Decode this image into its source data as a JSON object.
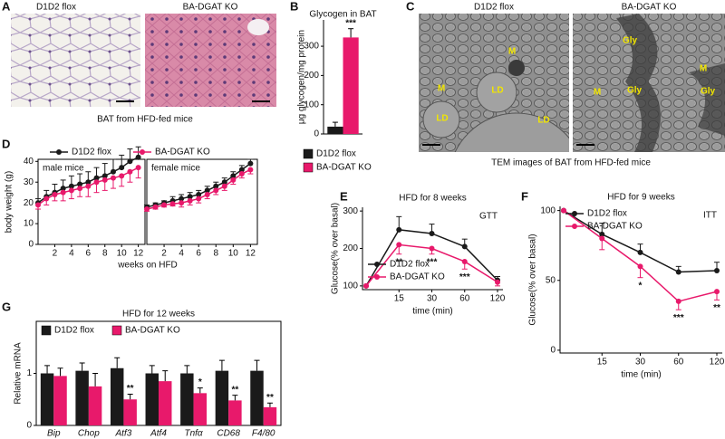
{
  "panel_labels": [
    "A",
    "B",
    "C",
    "D",
    "E",
    "F",
    "G"
  ],
  "histology": {
    "image_labels": [
      "D1D2 flox",
      "BA-DGAT KO"
    ],
    "caption": "BAT from HFD-fed mice"
  },
  "tem": {
    "image_labels": [
      "D1D2 flox",
      "BA-DGAT KO"
    ],
    "annotations": [
      "M",
      "M",
      "LD",
      "LD",
      "LD",
      "Gly",
      "M",
      "M",
      "Gly",
      "Gly"
    ],
    "caption": "TEM images of BAT from HFD-fed mice"
  },
  "chart_data": [
    {
      "type": "bar",
      "title": "Glycogen in BAT",
      "ylabel": "μg glycogen/mg protein",
      "ylim": [
        0,
        390
      ],
      "yticks": [
        0,
        100,
        200,
        300
      ],
      "legend": "below",
      "series": [
        {
          "name": "D1D2 flox",
          "color": "#1a1a1a",
          "values": [
            25
          ],
          "errors": [
            15
          ]
        },
        {
          "name": "BA-DGAT KO",
          "color": "#e8196b",
          "values": [
            330
          ],
          "errors": [
            30
          ],
          "significance": [
            "***"
          ]
        }
      ]
    },
    {
      "type": "line",
      "xlabel": "weeks on HFD",
      "ylabel": "body weight (g)",
      "x": [
        0,
        1,
        2,
        3,
        4,
        5,
        6,
        7,
        8,
        9,
        10,
        11,
        12
      ],
      "xlim": [
        0,
        12.8
      ],
      "xticks": [
        2,
        4,
        6,
        8,
        10,
        12
      ],
      "ylim": [
        0,
        41
      ],
      "yticks": [
        0,
        10,
        20,
        30,
        40
      ],
      "legend": [
        {
          "name": "D1D2 flox",
          "color": "#1a1a1a"
        },
        {
          "name": "BA-DGAT KO",
          "color": "#e8196b"
        }
      ],
      "subplots": [
        {
          "title": "male mice",
          "series": [
            {
              "values": [
                20,
                23,
                25,
                27,
                28,
                29,
                30,
                32,
                33,
                35,
                37,
                40,
                42
              ],
              "errors": [
                2,
                3,
                4,
                4,
                5,
                5,
                5,
                5,
                6,
                6,
                6,
                6,
                5
              ]
            },
            {
              "values": [
                19,
                22,
                24,
                25,
                26,
                27,
                28,
                30,
                31,
                32,
                33,
                35,
                37
              ],
              "errors": [
                2,
                3,
                3,
                4,
                4,
                4,
                5,
                5,
                5,
                5,
                5,
                5,
                5
              ]
            }
          ]
        },
        {
          "title": "female mice",
          "series": [
            {
              "values": [
                18,
                19,
                20,
                21,
                22,
                23,
                24,
                26,
                28,
                30,
                33,
                36,
                39
              ],
              "errors": [
                1,
                1,
                1,
                2,
                2,
                2,
                2,
                2,
                2,
                2,
                2,
                2,
                2
              ]
            },
            {
              "values": [
                17,
                18,
                19,
                19.5,
                20,
                21,
                22,
                24,
                26,
                28,
                31,
                34,
                36
              ],
              "errors": [
                1,
                1,
                1,
                1,
                2,
                2,
                2,
                2,
                2,
                2,
                2,
                2,
                2
              ]
            }
          ]
        }
      ]
    },
    {
      "type": "line",
      "title": "HFD for 8 weeks",
      "label": "GTT",
      "xlabel": "time (min)",
      "ylabel": "Glucose(% over basal)",
      "categories": [
        null,
        "15",
        "30",
        "60",
        "120"
      ],
      "ylim": [
        90,
        310
      ],
      "yticks": [
        100,
        200,
        300
      ],
      "legend": "lower left",
      "series": [
        {
          "name": "D1D2 flox",
          "color": "#1a1a1a",
          "values": [
            100,
            250,
            240,
            205,
            115
          ],
          "errors": [
            0,
            35,
            25,
            20,
            10
          ]
        },
        {
          "name": "BA-DGAT KO",
          "color": "#e8196b",
          "values": [
            100,
            210,
            200,
            165,
            110
          ],
          "errors": [
            0,
            25,
            15,
            20,
            10
          ],
          "significance": [
            null,
            "**",
            "***",
            "***",
            null
          ]
        }
      ]
    },
    {
      "type": "line",
      "title": "HFD for 9 weeks",
      "label": "ITT",
      "xlabel": "time (min)",
      "ylabel": "Glucose(% over basal)",
      "categories": [
        null,
        "15",
        "30",
        "60",
        "120"
      ],
      "ylim": [
        -2,
        103
      ],
      "yticks": [
        0,
        50,
        100
      ],
      "legend": "upper left",
      "series": [
        {
          "name": "D1D2 flox",
          "color": "#1a1a1a",
          "values": [
            100,
            83,
            70,
            56,
            57
          ],
          "errors": [
            0,
            8,
            6,
            4,
            6
          ]
        },
        {
          "name": "BA-DGAT KO",
          "color": "#e8196b",
          "values": [
            100,
            80,
            60,
            35,
            42
          ],
          "errors": [
            0,
            8,
            8,
            6,
            6
          ],
          "significance": [
            null,
            null,
            "*",
            "***",
            "**"
          ]
        }
      ]
    },
    {
      "type": "bar",
      "title": "HFD for 12 weeks",
      "ylabel": "Relative mRNA",
      "categories": [
        "Bip",
        "Chop",
        "Atf3",
        "Atf4",
        "Tnfα",
        "CD68",
        "F4/80"
      ],
      "ylim": [
        0,
        2
      ],
      "yticks": [
        0,
        1
      ],
      "legend": "upper left",
      "series": [
        {
          "name": "D1D2 flox",
          "color": "#1a1a1a",
          "values": [
            1.0,
            1.05,
            1.1,
            1.0,
            1.0,
            1.05,
            1.05
          ],
          "errors": [
            0.15,
            0.15,
            0.2,
            0.15,
            0.15,
            0.2,
            0.2
          ]
        },
        {
          "name": "BA-DGAT KO",
          "color": "#e8196b",
          "values": [
            0.95,
            0.75,
            0.5,
            0.85,
            0.62,
            0.48,
            0.35
          ],
          "errors": [
            0.15,
            0.25,
            0.1,
            0.2,
            0.1,
            0.1,
            0.08
          ],
          "significance": [
            null,
            null,
            "**",
            null,
            "*",
            "**",
            "**"
          ]
        }
      ]
    }
  ]
}
